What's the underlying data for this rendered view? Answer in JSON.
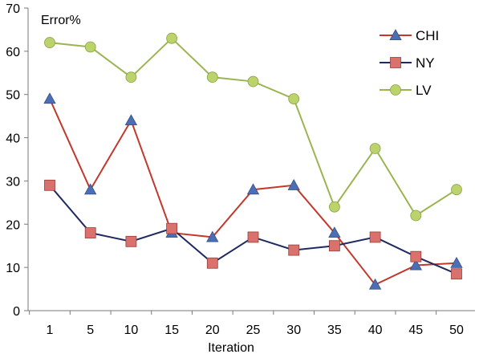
{
  "chart_data": {
    "type": "line",
    "title": "",
    "ylabel": "Error%",
    "xlabel": "Iteration",
    "categories": [
      "1",
      "5",
      "10",
      "15",
      "20",
      "25",
      "30",
      "35",
      "40",
      "45",
      "50"
    ],
    "ylim": [
      0,
      70
    ],
    "yticks": [
      0,
      10,
      20,
      30,
      40,
      50,
      60,
      70
    ],
    "grid": false,
    "legend_position": "top-right",
    "series": [
      {
        "name": "CHI",
        "color": "#c0392b",
        "marker": "triangle",
        "marker_fill": "#4a6fb5",
        "values": [
          49,
          28,
          44,
          18,
          17,
          28,
          29,
          18,
          6,
          10.5,
          11
        ]
      },
      {
        "name": "NY",
        "color": "#1f2a63",
        "marker": "square",
        "marker_fill": "#d9716d",
        "values": [
          29,
          18,
          16,
          19,
          11,
          17,
          14,
          15,
          17,
          12.5,
          8.5
        ]
      },
      {
        "name": "LV",
        "color": "#9ab550",
        "marker": "circle",
        "marker_fill": "#bcd26a",
        "values": [
          62,
          61,
          54,
          63,
          54,
          53,
          49,
          24,
          37.5,
          22,
          28
        ]
      }
    ]
  }
}
